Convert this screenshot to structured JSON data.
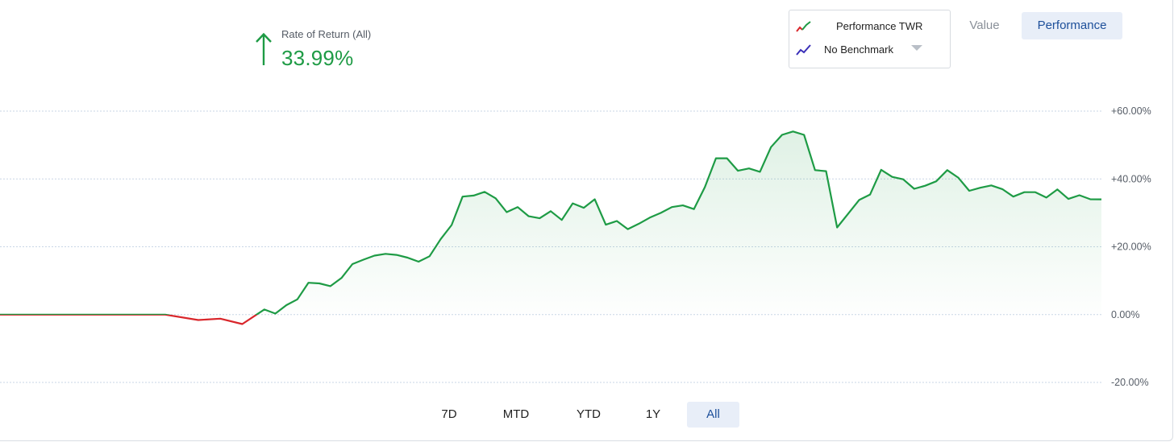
{
  "summary": {
    "label": "Rate of Return (All)",
    "value": "33.99%",
    "direction_icon": "arrow-up-icon",
    "color": "#1e9b45"
  },
  "legend": {
    "series_label": "Performance TWR",
    "benchmark_label": "No Benchmark",
    "series_icon": "line-chart-red-green-icon",
    "benchmark_icon": "line-chart-blue-icon"
  },
  "view_toggle": {
    "options": [
      "Value",
      "Performance"
    ],
    "selected": "Performance"
  },
  "range_tabs": {
    "options": [
      "7D",
      "MTD",
      "YTD",
      "1Y",
      "All"
    ],
    "selected": "All"
  },
  "colors": {
    "positive": "#1e9b45",
    "negative": "#d9262b",
    "accent_bg": "#e8eef8",
    "accent_text": "#1d4f9a"
  },
  "chart_data": {
    "type": "line",
    "ylim": [
      -20,
      60
    ],
    "yticks": [
      60,
      40,
      20,
      0,
      -20
    ],
    "ytick_labels": [
      "+60.00%",
      "+40.00%",
      "+20.00%",
      "0.00%",
      "-20.00%"
    ],
    "grid": true,
    "series": [
      {
        "name": "Performance TWR",
        "fill": true,
        "x": [
          0,
          5,
          10,
          15,
          18,
          20,
          22,
          24,
          25,
          26,
          27,
          28,
          29,
          30,
          31,
          32,
          33,
          34,
          35,
          36,
          37,
          38,
          39,
          40,
          41,
          42,
          43,
          44,
          45,
          46,
          47,
          48,
          49,
          50,
          51,
          52,
          53,
          54,
          55,
          56,
          57,
          58,
          59,
          60,
          61,
          62,
          63,
          64,
          65,
          66,
          67,
          68,
          69,
          70,
          71,
          72,
          73,
          74,
          75,
          76,
          77,
          78,
          79,
          80,
          81,
          82,
          83,
          84,
          85,
          86,
          87,
          88,
          89,
          90,
          91,
          92,
          93,
          94,
          95,
          96,
          97,
          98,
          99,
          100
        ],
        "y": [
          0,
          0,
          0,
          0,
          -1.6,
          -1.2,
          -2.8,
          1.5,
          0.3,
          2.8,
          4.5,
          9.4,
          9.2,
          8.4,
          10.8,
          14.9,
          16.2,
          17.4,
          17.9,
          17.6,
          16.8,
          15.6,
          17.2,
          22.2,
          26.4,
          34.8,
          35.1,
          36.2,
          34.3,
          30.2,
          31.7,
          29.0,
          28.4,
          30.5,
          27.9,
          32.8,
          31.5,
          34.0,
          26.5,
          27.6,
          25.2,
          26.8,
          28.6,
          30.0,
          31.7,
          32.2,
          31.1,
          37.6,
          46.1,
          46.1,
          42.4,
          43.1,
          42.1,
          49.4,
          53.0,
          54.0,
          53.0,
          42.6,
          42.3,
          25.7,
          29.7,
          33.8,
          35.4,
          42.7,
          40.6,
          39.9,
          37.1,
          38.0,
          39.3,
          42.6,
          40.4,
          36.5,
          37.4,
          38.1,
          37.0,
          34.8,
          36.1,
          36.1,
          34.5,
          36.9,
          34.1,
          35.2,
          34.0,
          33.99
        ]
      }
    ]
  }
}
